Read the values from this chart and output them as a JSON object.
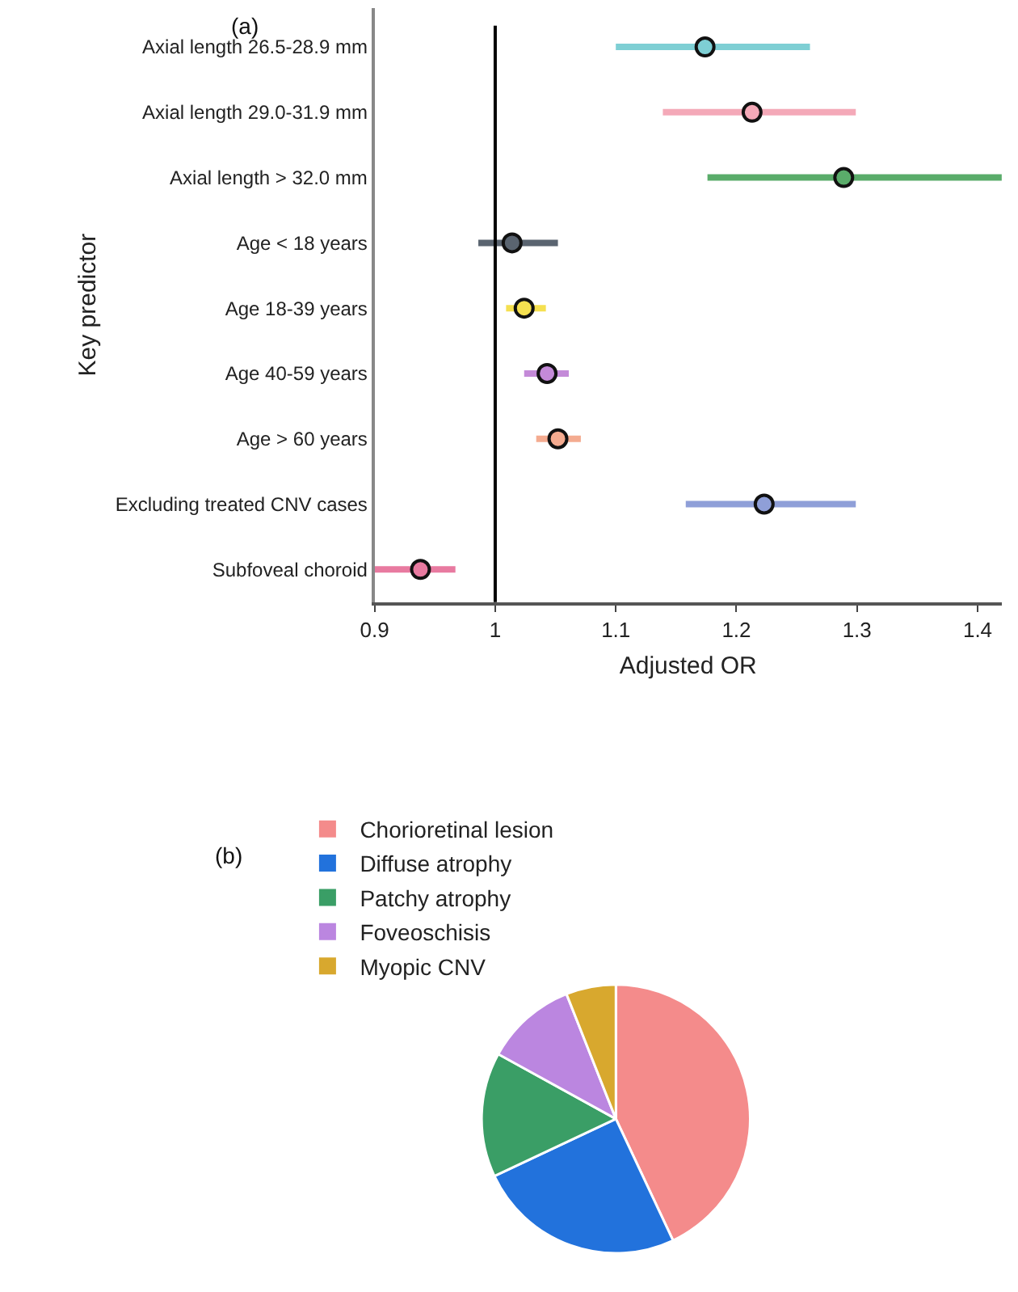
{
  "chart_data": [
    {
      "type": "scatter",
      "orientation": "horizontal",
      "title": "(a)",
      "xlabel": "Adjusted OR",
      "ylabel": "Key predictor",
      "categories": [
        "Axial length 26.5-28.9 mm",
        "Axial length 29.0-31.9 mm",
        "Axial length > 32.0 mm",
        "Age < 18 years",
        "Age 18-39 years",
        "Age 40-59 years",
        "Age > 60 years",
        "Excluding treated CNV cases",
        "Subfoveal choroid"
      ],
      "values": [
        1.174,
        1.213,
        1.289,
        1.014,
        1.024,
        1.043,
        1.052,
        1.223,
        0.938
      ],
      "errors": [
        [
          1.1,
          1.261
        ],
        [
          1.139,
          1.299
        ],
        [
          1.176,
          1.421
        ],
        [
          0.986,
          1.052
        ],
        [
          1.009,
          1.042
        ],
        [
          1.024,
          1.061
        ],
        [
          1.034,
          1.071
        ],
        [
          1.158,
          1.299
        ],
        [
          0.9,
          0.967
        ]
      ],
      "colors": [
        "#7ecfd4",
        "#f4a9b8",
        "#5aac6a",
        "#5a6470",
        "#f5e050",
        "#c48ad8",
        "#f4ab90",
        "#8f9fd8",
        "#e87aa0"
      ],
      "marker": "circle",
      "xlim": [
        0.9,
        1.42
      ],
      "xticks": [
        0.9,
        1,
        1.1,
        1.2,
        1.3,
        1.4
      ],
      "ref_lines": [
        {
          "axis": "x",
          "value": 1,
          "color": "#000000"
        }
      ],
      "legend": false
    },
    {
      "type": "pie",
      "title": "(b)",
      "categories": [
        "Chorioretinal lesion",
        "Diffuse atrophy",
        "Patchy atrophy",
        "Foveoschisis",
        "Myopic CNV"
      ],
      "values": [
        43,
        25,
        15,
        11,
        6
      ],
      "colors": [
        "#f48b8b",
        "#2272dc",
        "#3a9e66",
        "#bb86e0",
        "#d8a82e"
      ],
      "legend": "top left"
    }
  ]
}
